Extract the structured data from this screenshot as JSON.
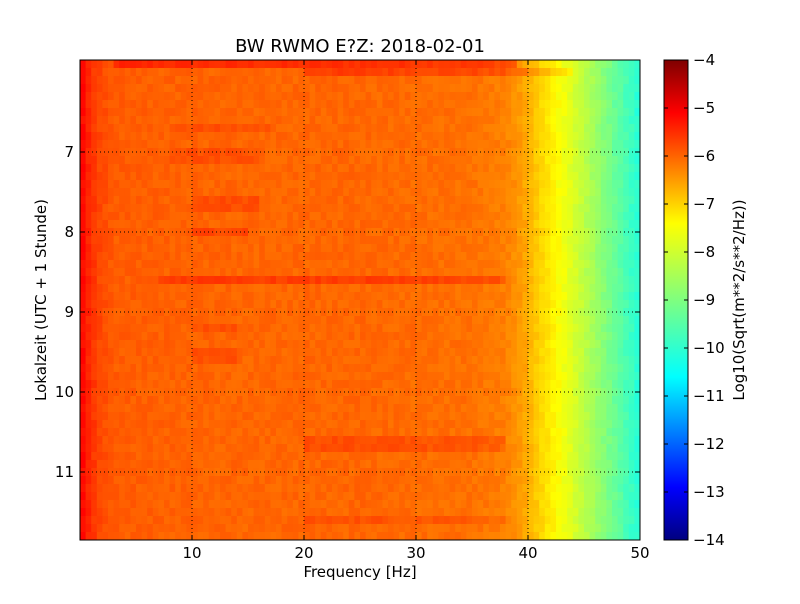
{
  "chart_data": {
    "type": "heatmap",
    "title": "BW RWMO E?Z: 2018-02-01",
    "xlabel": "Frequency [Hz]",
    "ylabel": "Lokalzeit (UTC + 1 Stunde)",
    "xlim": [
      0,
      50
    ],
    "ylim": [
      5.85,
      11.85
    ],
    "y_inverted": true,
    "x_ticks": [
      10,
      20,
      30,
      40,
      50
    ],
    "x_tick_labels": [
      "10",
      "20",
      "30",
      "40",
      "50"
    ],
    "y_ticks": [
      7,
      8,
      9,
      10,
      11
    ],
    "y_tick_labels": [
      "7",
      "8",
      "9",
      "10",
      "11"
    ],
    "grid": true,
    "colormap": "jet",
    "colorbar": {
      "label": "Log10(Sqrt(m**2/s**2/Hz))",
      "range": [
        -14,
        -4
      ],
      "ticks": [
        -4,
        -5,
        -6,
        -7,
        -8,
        -9,
        -10,
        -11,
        -12,
        -13,
        -14
      ],
      "tick_labels": [
        "−4",
        "−5",
        "−6",
        "−7",
        "−8",
        "−9",
        "−10",
        "−11",
        "−12",
        "−13",
        "−14"
      ]
    },
    "spectrum_profile": {
      "frequency_hz": [
        0,
        0.5,
        1.5,
        3,
        8,
        15,
        25,
        35,
        38,
        39.5,
        41,
        42.5,
        44,
        46,
        48,
        50
      ],
      "log10_amplitude": [
        -5.2,
        -5.5,
        -5.9,
        -6.15,
        -6.2,
        -6.25,
        -6.25,
        -6.35,
        -6.5,
        -6.8,
        -7.3,
        -7.7,
        -8.1,
        -8.7,
        -9.3,
        -9.9
      ]
    },
    "noise_bands": [
      {
        "time": 5.9,
        "f_start": 3,
        "f_end": 39,
        "delta": 0.55
      },
      {
        "time": 6.0,
        "f_start": 20,
        "f_end": 44,
        "delta": 0.4
      },
      {
        "time": 6.7,
        "f_start": 8,
        "f_end": 17,
        "delta": 0.2
      },
      {
        "time": 7.05,
        "f_start": 8,
        "f_end": 16,
        "delta": 0.2
      },
      {
        "time": 7.65,
        "f_start": 10,
        "f_end": 16,
        "delta": 0.25
      },
      {
        "time": 8.0,
        "f_start": 10,
        "f_end": 15,
        "delta": 0.3
      },
      {
        "time": 8.58,
        "f_start": 7,
        "f_end": 38,
        "delta": 0.4
      },
      {
        "time": 9.2,
        "f_start": 10,
        "f_end": 14,
        "delta": 0.2
      },
      {
        "time": 9.55,
        "f_start": 10,
        "f_end": 14,
        "delta": 0.2
      },
      {
        "time": 10.65,
        "f_start": 20,
        "f_end": 38,
        "delta": 0.25
      },
      {
        "time": 11.6,
        "f_start": 20,
        "f_end": 38,
        "delta": 0.2
      }
    ]
  }
}
